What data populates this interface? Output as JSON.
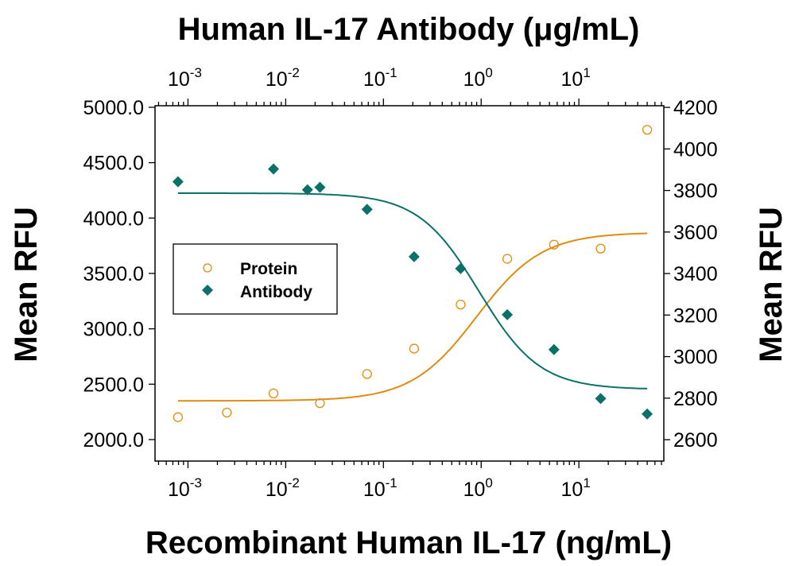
{
  "chart_data": {
    "type": "scatter",
    "top_title": "Human IL-17 Antibody (μg/mL)",
    "xlabel": "Recombinant Human IL-17 (ng/mL)",
    "ylabel_left": "Mean RFU",
    "ylabel_right": "Mean RFU",
    "x_scale": "log",
    "xlim": [
      0.00046,
      74
    ],
    "x_ticks": [
      {
        "base": "10",
        "exp": "-3",
        "value": 0.001
      },
      {
        "base": "10",
        "exp": "-2",
        "value": 0.01
      },
      {
        "base": "10",
        "exp": "-1",
        "value": 0.1
      },
      {
        "base": "10",
        "exp": "0",
        "value": 1
      },
      {
        "base": "10",
        "exp": "1",
        "value": 10
      }
    ],
    "ylim_left": [
      1806,
      5014
    ],
    "y_ticks_left": [
      "2000.0",
      "2500.0",
      "3000.0",
      "3500.0",
      "4000.0",
      "4500.0",
      "5000.0"
    ],
    "ylim_right": [
      2497,
      4208
    ],
    "y_ticks_right": [
      "2600",
      "2800",
      "3000",
      "3200",
      "3400",
      "3600",
      "3800",
      "4000",
      "4200"
    ],
    "grid": false,
    "legend_placement": "center-left",
    "series": [
      {
        "name": "Protein",
        "axis": "bottom-left",
        "marker": "open-circle",
        "color": "#E08B10",
        "x": [
          0.00079,
          0.0025,
          0.0075,
          0.0224,
          0.068,
          0.206,
          0.617,
          1.85,
          5.56,
          16.7,
          50
        ],
        "y": [
          2202,
          2244,
          2417,
          2329,
          2592,
          2821,
          3219,
          3632,
          3760,
          3724,
          4797
        ],
        "fit": {
          "bottom": 2350,
          "top": 3870,
          "ec50": 0.9,
          "hill": 1.3
        }
      },
      {
        "name": "Antibody",
        "axis": "top-right",
        "marker": "filled-diamond",
        "color": "#0B7168",
        "x": [
          0.00079,
          0.0075,
          0.0167,
          0.0224,
          0.068,
          0.206,
          0.617,
          1.85,
          5.56,
          16.7,
          50
        ],
        "y": [
          3842,
          3903,
          3803,
          3815,
          3709,
          3481,
          3424,
          3202,
          3034,
          2798,
          2724
        ],
        "fit": {
          "bottom": 2842,
          "top": 3787,
          "ec50": 0.95,
          "hill": 1.4
        }
      }
    ]
  }
}
